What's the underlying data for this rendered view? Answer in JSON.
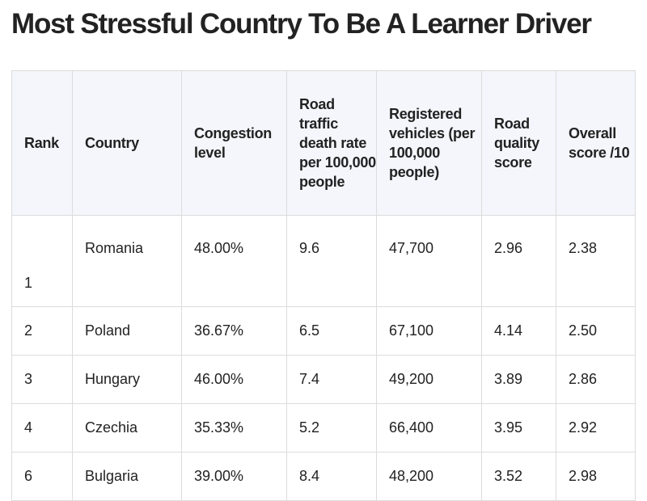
{
  "title": "Most Stressful Country To Be A Learner Driver",
  "table": {
    "headers": [
      "Rank",
      "Country",
      "Congestion level",
      "Road traffic death rate per 100,000 people",
      "Registered vehicles (per 100,000 people)",
      "Road quality score",
      "Overall score /10"
    ],
    "rows": [
      {
        "rank": "1",
        "country": "Romania",
        "congestion": "48.00%",
        "death_rate": "9.6",
        "vehicles": "47,700",
        "road_quality": "2.96",
        "overall": "2.38"
      },
      {
        "rank": "2",
        "country": "Poland",
        "congestion": "36.67%",
        "death_rate": "6.5",
        "vehicles": "67,100",
        "road_quality": "4.14",
        "overall": "2.50"
      },
      {
        "rank": "3",
        "country": "Hungary",
        "congestion": "46.00%",
        "death_rate": "7.4",
        "vehicles": "49,200",
        "road_quality": "3.89",
        "overall": "2.86"
      },
      {
        "rank": "4",
        "country": "Czechia",
        "congestion": "35.33%",
        "death_rate": "5.2",
        "vehicles": "66,400",
        "road_quality": "3.95",
        "overall": "2.92"
      },
      {
        "rank": "6",
        "country": "Bulgaria",
        "congestion": "39.00%",
        "death_rate": "8.4",
        "vehicles": "48,200",
        "road_quality": "3.52",
        "overall": "2.98"
      }
    ]
  },
  "colors": {
    "header_background": "#f4f6fb",
    "border": "#dcdcdc",
    "text": "#222222"
  }
}
